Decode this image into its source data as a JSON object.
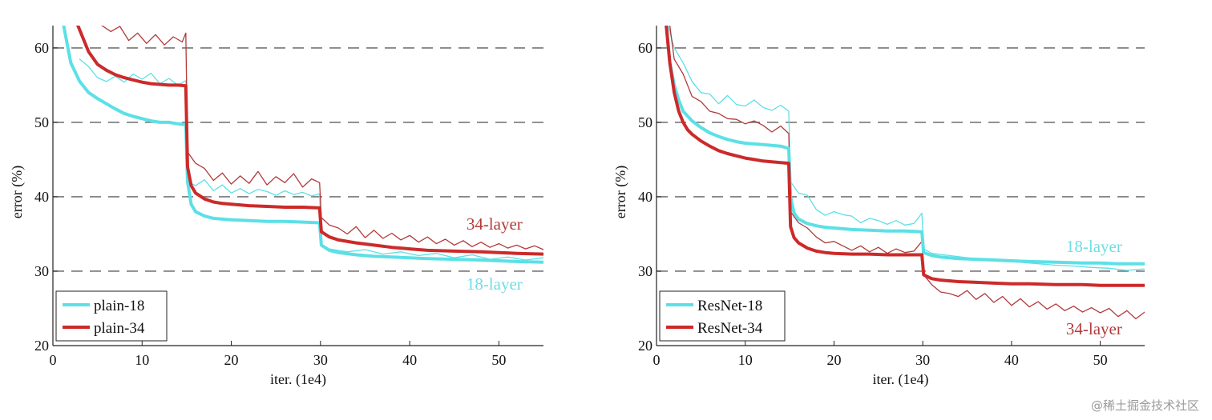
{
  "watermark": "@稀土掘金技术社区",
  "chart_data": [
    {
      "type": "line",
      "xlabel": "iter. (1e4)",
      "ylabel": "error (%)",
      "xlim": [
        0,
        55
      ],
      "ylim": [
        20,
        63
      ],
      "xticks": [
        0,
        10,
        20,
        30,
        40,
        50
      ],
      "yticks": [
        20,
        30,
        40,
        50,
        60
      ],
      "grid_lines_y": [
        30,
        40,
        50,
        60
      ],
      "legend_position": "bottom-left",
      "legend": [
        {
          "label": "plain-18",
          "color": "#5ce0e6"
        },
        {
          "label": "plain-34",
          "color": "#cc2a2a"
        }
      ],
      "annotations": [
        {
          "text": "34-layer",
          "x": 49.5,
          "y": 35.6,
          "color": "#b23a3a"
        },
        {
          "text": "18-layer",
          "x": 49.5,
          "y": 27.5,
          "color": "#6fdde2"
        }
      ],
      "series": [
        {
          "name": "plain-18 train",
          "color": "#5ce0e6",
          "width": 4,
          "x": [
            1.2,
            2,
            3,
            4,
            5,
            6,
            7,
            8,
            9,
            10,
            11,
            12,
            13,
            14,
            14.9,
            15.1,
            15.5,
            16,
            17,
            18,
            19,
            20,
            22,
            24,
            26,
            28,
            29.9,
            30.1,
            31,
            32,
            34,
            36,
            38,
            40,
            42,
            45,
            48,
            50,
            52,
            55
          ],
          "y": [
            63,
            58,
            55.5,
            54,
            53.2,
            52.5,
            51.8,
            51.2,
            50.8,
            50.5,
            50.2,
            50,
            50,
            49.8,
            49.7,
            42,
            39,
            38,
            37.4,
            37.1,
            37,
            36.9,
            36.8,
            36.7,
            36.7,
            36.6,
            36.5,
            33.5,
            32.8,
            32.5,
            32.2,
            32,
            31.9,
            31.8,
            31.7,
            31.6,
            31.5,
            31.4,
            31.3,
            31.2
          ]
        },
        {
          "name": "plain-18 val",
          "color": "#5ce0e6",
          "width": 1.3,
          "x": [
            3,
            4,
            5,
            6,
            7,
            8,
            9,
            10,
            11,
            12,
            13,
            14,
            14.9,
            15.1,
            16,
            17,
            18,
            19,
            20,
            21,
            22,
            23,
            24,
            25,
            26,
            27,
            28,
            29,
            29.9,
            30.1,
            31,
            33,
            35,
            37,
            39,
            41,
            43,
            45,
            47,
            49,
            51,
            53,
            55
          ],
          "y": [
            58.5,
            57.5,
            56,
            55.5,
            56.2,
            55.4,
            56.5,
            55.8,
            56.6,
            55.2,
            55.9,
            55,
            55.6,
            42,
            41.5,
            42.3,
            40.8,
            41.6,
            40.5,
            41.1,
            40.4,
            41,
            40.7,
            40.2,
            40.8,
            40.3,
            40.6,
            40.1,
            40.4,
            33.5,
            33,
            32.6,
            32.9,
            32.3,
            32.6,
            32.1,
            32.4,
            31.8,
            32.2,
            31.6,
            31.9,
            31.5,
            31.8
          ]
        },
        {
          "name": "plain-34 train",
          "color": "#cc2a2a",
          "width": 4,
          "x": [
            2.8,
            4,
            5,
            6,
            7,
            8,
            9,
            10,
            11,
            12,
            13,
            14,
            14.9,
            15.1,
            15.5,
            16,
            17,
            18,
            19,
            20,
            22,
            24,
            26,
            28,
            29.9,
            30.1,
            31,
            32,
            34,
            36,
            38,
            40,
            42,
            45,
            48,
            50,
            52,
            55
          ],
          "y": [
            63,
            59.5,
            57.8,
            57,
            56.4,
            56,
            55.7,
            55.4,
            55.2,
            55.1,
            55,
            55,
            54.9,
            44,
            41.5,
            40.5,
            39.7,
            39.3,
            39.1,
            39,
            38.8,
            38.7,
            38.6,
            38.6,
            38.5,
            35.3,
            34.6,
            34.2,
            33.8,
            33.5,
            33.2,
            33,
            32.8,
            32.7,
            32.6,
            32.5,
            32.4,
            32.3
          ]
        },
        {
          "name": "plain-34 val",
          "color": "#b23a3a",
          "width": 1.3,
          "x": [
            5.5,
            6.5,
            7.5,
            8.5,
            9.5,
            10.5,
            11.5,
            12.5,
            13.5,
            14.5,
            14.9,
            15.1,
            16,
            17,
            18,
            19,
            20,
            21,
            22,
            23,
            24,
            25,
            26,
            27,
            28,
            29,
            29.9,
            30.1,
            31,
            32,
            33,
            34,
            35,
            36,
            37,
            38,
            39,
            40,
            41,
            42,
            43,
            44,
            45,
            46,
            47,
            48,
            49,
            50,
            51,
            52,
            53,
            54,
            55
          ],
          "y": [
            63,
            62.2,
            62.9,
            61,
            62,
            60.6,
            61.8,
            60.4,
            61.5,
            60.8,
            62,
            46,
            44.5,
            43.8,
            42.2,
            43.2,
            41.7,
            42.8,
            41.8,
            43.4,
            41.6,
            42.7,
            41.9,
            43.1,
            41.3,
            42.4,
            41.9,
            37.2,
            36.2,
            35.8,
            35,
            36,
            34.5,
            35.5,
            34.4,
            35.1,
            34.2,
            34.8,
            33.9,
            34.6,
            33.7,
            34.3,
            33.5,
            34.1,
            33.3,
            33.9,
            33.2,
            33.7,
            33.1,
            33.5,
            33,
            33.4,
            32.9
          ]
        }
      ]
    },
    {
      "type": "line",
      "xlabel": "iter. (1e4)",
      "ylabel": "error (%)",
      "xlim": [
        0,
        55
      ],
      "ylim": [
        20,
        63
      ],
      "xticks": [
        0,
        10,
        20,
        30,
        40,
        50
      ],
      "yticks": [
        20,
        30,
        40,
        50,
        60
      ],
      "grid_lines_y": [
        30,
        40,
        50,
        60
      ],
      "legend_position": "bottom-left",
      "legend": [
        {
          "label": "ResNet-18",
          "color": "#5ce0e6"
        },
        {
          "label": "ResNet-34",
          "color": "#cc2a2a"
        }
      ],
      "annotations": [
        {
          "text": "18-layer",
          "x": 49.3,
          "y": 32.6,
          "color": "#6fdde2"
        },
        {
          "text": "34-layer",
          "x": 49.3,
          "y": 21.5,
          "color": "#b23a3a"
        }
      ],
      "series": [
        {
          "name": "ResNet-18 train",
          "color": "#5ce0e6",
          "width": 4,
          "x": [
            1.1,
            1.5,
            2,
            2.5,
            3,
            4,
            5,
            6,
            7,
            8,
            9,
            10,
            11,
            12,
            13,
            14,
            14.9,
            15.1,
            15.5,
            16,
            17,
            18,
            19,
            20,
            22,
            24,
            26,
            28,
            29.9,
            30.1,
            31,
            32,
            34,
            36,
            38,
            40,
            42,
            45,
            48,
            50,
            52,
            55
          ],
          "y": [
            63,
            58,
            55,
            53,
            51.5,
            50.2,
            49.3,
            48.6,
            48.1,
            47.7,
            47.4,
            47.2,
            47.1,
            47,
            46.9,
            46.8,
            46.5,
            40,
            37.8,
            37,
            36.4,
            36.1,
            35.9,
            35.8,
            35.6,
            35.5,
            35.4,
            35.4,
            35.3,
            32.5,
            32.1,
            31.9,
            31.7,
            31.6,
            31.5,
            31.4,
            31.3,
            31.2,
            31.1,
            31.1,
            31,
            31
          ]
        },
        {
          "name": "ResNet-18 val",
          "color": "#5ce0e6",
          "width": 1.3,
          "x": [
            1.3,
            2,
            3,
            4,
            5,
            6,
            7,
            8,
            9,
            10,
            11,
            12,
            13,
            14,
            14.9,
            15.1,
            16,
            17,
            18,
            19,
            20,
            21,
            22,
            23,
            24,
            25,
            26,
            27,
            28,
            29,
            29.9,
            30.1,
            31,
            33,
            35,
            37,
            39,
            41,
            43,
            45,
            47,
            49,
            51,
            53,
            55
          ],
          "y": [
            63,
            60,
            58,
            55.5,
            54,
            53.8,
            52.5,
            53.6,
            52.4,
            52.2,
            53,
            52,
            51.6,
            52.3,
            51.5,
            42,
            40.5,
            40.2,
            38.3,
            37.5,
            38,
            37.6,
            37.4,
            36.5,
            37.1,
            36.8,
            36.3,
            36.8,
            36.2,
            36.4,
            37.8,
            33,
            32.4,
            32.1,
            31.8,
            31.5,
            31.3,
            31.2,
            31,
            30.8,
            30.7,
            30.5,
            30.4,
            30.1,
            30.3
          ]
        },
        {
          "name": "ResNet-34 train",
          "color": "#cc2a2a",
          "width": 4,
          "x": [
            1.1,
            1.5,
            2,
            2.5,
            3,
            3.5,
            4,
            5,
            6,
            7,
            8,
            9,
            10,
            11,
            12,
            13,
            14,
            14.9,
            15.1,
            15.5,
            16,
            17,
            18,
            19,
            20,
            22,
            24,
            26,
            28,
            29.9,
            30.1,
            31,
            32,
            34,
            36,
            38,
            40,
            42,
            45,
            48,
            50,
            52,
            55
          ],
          "y": [
            63,
            58,
            54,
            51.5,
            50,
            49,
            48.4,
            47.5,
            46.8,
            46.2,
            45.8,
            45.5,
            45.2,
            45,
            44.8,
            44.7,
            44.6,
            44.5,
            36,
            34.5,
            33.8,
            33.1,
            32.7,
            32.5,
            32.4,
            32.3,
            32.3,
            32.2,
            32.2,
            32.2,
            29.5,
            29,
            28.8,
            28.6,
            28.5,
            28.4,
            28.3,
            28.3,
            28.2,
            28.2,
            28.1,
            28.1,
            28.1
          ]
        },
        {
          "name": "ResNet-34 val",
          "color": "#b23a3a",
          "width": 1.3,
          "x": [
            1.5,
            2,
            3,
            4,
            5,
            6,
            7,
            8,
            9,
            10,
            11,
            12,
            13,
            14,
            14.9,
            15.1,
            16,
            17,
            18,
            19,
            20,
            21,
            22,
            23,
            24,
            25,
            26,
            27,
            28,
            29,
            29.9,
            30.1,
            31,
            32,
            33,
            34,
            35,
            36,
            37,
            38,
            39,
            40,
            41,
            42,
            43,
            44,
            45,
            46,
            47,
            48,
            49,
            50,
            51,
            52,
            53,
            54,
            55
          ],
          "y": [
            63,
            58.5,
            56.5,
            53.5,
            52.8,
            51.5,
            51.2,
            50.5,
            50.4,
            49.8,
            50.2,
            49.6,
            48.7,
            49.5,
            48.5,
            38,
            36.5,
            35.8,
            34.6,
            33.8,
            34,
            33.4,
            32.8,
            33.4,
            32.6,
            33.2,
            32.4,
            33,
            32.5,
            32.7,
            34,
            29.5,
            28.2,
            27.2,
            27,
            26.6,
            27.4,
            26.2,
            27,
            25.8,
            26.6,
            25.4,
            26.3,
            25.2,
            25.9,
            24.9,
            25.6,
            24.7,
            25.3,
            24.5,
            25.1,
            24.4,
            25,
            23.9,
            24.7,
            23.6,
            24.5
          ]
        }
      ]
    }
  ]
}
